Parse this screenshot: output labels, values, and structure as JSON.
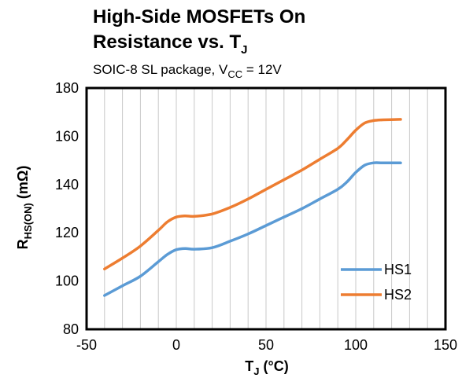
{
  "chart_data": {
    "type": "line",
    "title": {
      "line1": "High-Side MOSFETs On",
      "line2": "Resistance vs. T",
      "line2_sub": "J"
    },
    "subtitle": {
      "text": "SOIC-8 SL package, V",
      "sub": "CC",
      "suffix": " = 12V"
    },
    "xlabel": {
      "main": "T",
      "sub": "J",
      "rest": " (°C)"
    },
    "ylabel": {
      "main": "R",
      "sub": "HS(ON)",
      "rest": " (mΩ)"
    },
    "xlim": [
      -50,
      150
    ],
    "ylim": [
      80,
      180
    ],
    "xticks": [
      -50,
      0,
      50,
      100,
      150
    ],
    "yticks": [
      80,
      100,
      120,
      140,
      160,
      180
    ],
    "x_minor_step": 10,
    "grid": "vertical",
    "legend_position": "bottom-right",
    "series": [
      {
        "name": "HS1",
        "color": "#5b9bd5",
        "x": [
          -40,
          -30,
          -20,
          -10,
          -5,
          0,
          5,
          10,
          20,
          30,
          40,
          50,
          60,
          70,
          80,
          90,
          95,
          100,
          105,
          110,
          115,
          125
        ],
        "y": [
          94,
          98,
          102,
          108,
          111,
          113,
          113.5,
          113.2,
          113.8,
          116.5,
          119.5,
          123,
          126.5,
          130,
          134,
          138,
          141,
          145,
          148,
          149,
          149,
          149
        ]
      },
      {
        "name": "HS2",
        "color": "#ed7d31",
        "x": [
          -40,
          -30,
          -20,
          -10,
          -5,
          0,
          5,
          10,
          20,
          30,
          40,
          50,
          60,
          70,
          80,
          90,
          95,
          100,
          105,
          110,
          115,
          125
        ],
        "y": [
          105,
          109.5,
          114.5,
          121,
          124.5,
          126.5,
          127,
          126.8,
          127.8,
          130.5,
          134,
          138,
          142,
          146,
          150.5,
          155,
          158.5,
          162.5,
          165.5,
          166.5,
          166.8,
          167
        ]
      }
    ]
  }
}
